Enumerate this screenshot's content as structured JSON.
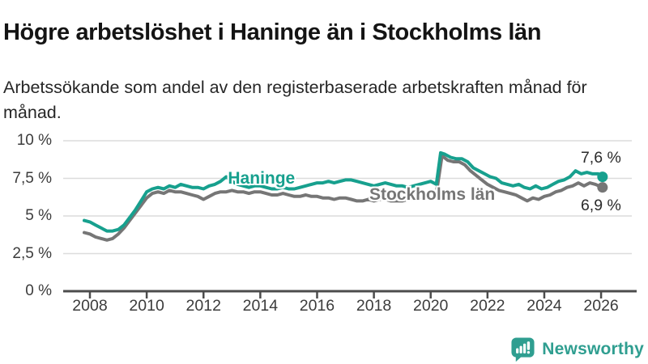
{
  "header": {
    "title": "Högre arbetslöshet i Haninge än i Stockholms län",
    "subtitle": "Arbetssökande som andel av den registerbaserade arbetskraften månad för månad."
  },
  "colors": {
    "haninge": "#17a08e",
    "stockholm": "#767676",
    "grid": "#dcdcdc",
    "axis": "#4c4c4c",
    "tick_text": "#3c3c3c",
    "title_text": "#141414",
    "logo_teal": "#2f9e90"
  },
  "footer": {
    "brand": "Newsworthy"
  },
  "chart_data": {
    "type": "line",
    "title": "Högre arbetslöshet i Haninge än i Stockholms län",
    "subtitle": "Arbetssökande som andel av den registerbaserade arbetskraften månad för månad.",
    "unit": "%",
    "grid": true,
    "x_axis": {
      "range": [
        2007.7,
        2026.3
      ],
      "ticks": [
        {
          "value": 2008,
          "label": "2008"
        },
        {
          "value": 2010,
          "label": "2010"
        },
        {
          "value": 2012,
          "label": "2012"
        },
        {
          "value": 2014,
          "label": "2014"
        },
        {
          "value": 2016,
          "label": "2016"
        },
        {
          "value": 2018,
          "label": "2018"
        },
        {
          "value": 2020,
          "label": "2020"
        },
        {
          "value": 2022,
          "label": "2022"
        },
        {
          "value": 2024,
          "label": "2024"
        },
        {
          "value": 2026,
          "label": "2026"
        }
      ]
    },
    "y_axis": {
      "range": [
        0,
        10
      ],
      "ticks": [
        {
          "value": 0,
          "label": "0 %"
        },
        {
          "value": 2.5,
          "label": "2,5 %"
        },
        {
          "value": 5,
          "label": "5 %"
        },
        {
          "value": 7.5,
          "label": "7,5 %"
        },
        {
          "value": 10,
          "label": "10 %"
        }
      ]
    },
    "series": [
      {
        "name": "Stockholms län",
        "color_key": "stockholm",
        "end_label": "6,9 %",
        "label_at": [
          2017.84,
          6.42
        ],
        "points": [
          [
            2007.8,
            3.9
          ],
          [
            2008.0,
            3.8
          ],
          [
            2008.2,
            3.6
          ],
          [
            2008.4,
            3.5
          ],
          [
            2008.6,
            3.4
          ],
          [
            2008.8,
            3.5
          ],
          [
            2009.0,
            3.8
          ],
          [
            2009.2,
            4.2
          ],
          [
            2009.4,
            4.7
          ],
          [
            2009.6,
            5.2
          ],
          [
            2009.8,
            5.7
          ],
          [
            2010.0,
            6.2
          ],
          [
            2010.2,
            6.5
          ],
          [
            2010.4,
            6.6
          ],
          [
            2010.6,
            6.5
          ],
          [
            2010.8,
            6.7
          ],
          [
            2011.0,
            6.6
          ],
          [
            2011.2,
            6.6
          ],
          [
            2011.4,
            6.5
          ],
          [
            2011.6,
            6.4
          ],
          [
            2011.8,
            6.3
          ],
          [
            2012.0,
            6.1
          ],
          [
            2012.2,
            6.3
          ],
          [
            2012.4,
            6.5
          ],
          [
            2012.6,
            6.6
          ],
          [
            2012.8,
            6.6
          ],
          [
            2013.0,
            6.7
          ],
          [
            2013.2,
            6.6
          ],
          [
            2013.4,
            6.6
          ],
          [
            2013.6,
            6.5
          ],
          [
            2013.8,
            6.6
          ],
          [
            2014.0,
            6.6
          ],
          [
            2014.2,
            6.5
          ],
          [
            2014.4,
            6.4
          ],
          [
            2014.6,
            6.4
          ],
          [
            2014.8,
            6.5
          ],
          [
            2015.0,
            6.4
          ],
          [
            2015.2,
            6.3
          ],
          [
            2015.4,
            6.3
          ],
          [
            2015.6,
            6.4
          ],
          [
            2015.8,
            6.3
          ],
          [
            2016.0,
            6.3
          ],
          [
            2016.2,
            6.2
          ],
          [
            2016.4,
            6.2
          ],
          [
            2016.6,
            6.1
          ],
          [
            2016.8,
            6.2
          ],
          [
            2017.0,
            6.2
          ],
          [
            2017.2,
            6.1
          ],
          [
            2017.4,
            6.0
          ],
          [
            2017.6,
            6.0
          ],
          [
            2017.8,
            6.1
          ],
          [
            2018.0,
            6.0
          ],
          [
            2018.2,
            6.1
          ],
          [
            2018.4,
            6.1
          ],
          [
            2018.6,
            6.0
          ],
          [
            2018.8,
            6.0
          ],
          [
            2019.0,
            6.0
          ],
          [
            2019.2,
            6.1
          ],
          [
            2019.4,
            6.1
          ],
          [
            2019.6,
            6.2
          ],
          [
            2019.8,
            6.3
          ],
          [
            2020.0,
            6.6
          ],
          [
            2020.2,
            6.5
          ],
          [
            2020.4,
            9.0
          ],
          [
            2020.6,
            8.7
          ],
          [
            2020.8,
            8.6
          ],
          [
            2021.0,
            8.6
          ],
          [
            2021.2,
            8.4
          ],
          [
            2021.4,
            8.0
          ],
          [
            2021.6,
            7.7
          ],
          [
            2021.8,
            7.4
          ],
          [
            2022.0,
            7.1
          ],
          [
            2022.2,
            6.9
          ],
          [
            2022.4,
            6.7
          ],
          [
            2022.6,
            6.6
          ],
          [
            2022.8,
            6.5
          ],
          [
            2023.0,
            6.4
          ],
          [
            2023.2,
            6.2
          ],
          [
            2023.4,
            6.0
          ],
          [
            2023.6,
            6.2
          ],
          [
            2023.8,
            6.1
          ],
          [
            2024.0,
            6.3
          ],
          [
            2024.2,
            6.4
          ],
          [
            2024.4,
            6.6
          ],
          [
            2024.6,
            6.7
          ],
          [
            2024.8,
            6.9
          ],
          [
            2025.0,
            7.0
          ],
          [
            2025.2,
            7.2
          ],
          [
            2025.4,
            7.0
          ],
          [
            2025.6,
            7.2
          ],
          [
            2025.8,
            7.1
          ],
          [
            2026.05,
            6.9
          ]
        ]
      },
      {
        "name": "Haninge",
        "color_key": "haninge",
        "end_label": "7,6 %",
        "label_at": [
          2012.86,
          7.45
        ],
        "points": [
          [
            2007.8,
            4.7
          ],
          [
            2008.0,
            4.6
          ],
          [
            2008.2,
            4.4
          ],
          [
            2008.4,
            4.2
          ],
          [
            2008.6,
            4.0
          ],
          [
            2008.8,
            4.0
          ],
          [
            2009.0,
            4.1
          ],
          [
            2009.2,
            4.4
          ],
          [
            2009.4,
            4.9
          ],
          [
            2009.6,
            5.4
          ],
          [
            2009.8,
            6.0
          ],
          [
            2010.0,
            6.6
          ],
          [
            2010.2,
            6.8
          ],
          [
            2010.4,
            6.9
          ],
          [
            2010.6,
            6.8
          ],
          [
            2010.8,
            7.0
          ],
          [
            2011.0,
            6.9
          ],
          [
            2011.2,
            7.1
          ],
          [
            2011.4,
            7.0
          ],
          [
            2011.6,
            6.9
          ],
          [
            2011.8,
            6.9
          ],
          [
            2012.0,
            6.8
          ],
          [
            2012.2,
            7.0
          ],
          [
            2012.4,
            7.1
          ],
          [
            2012.6,
            7.3
          ],
          [
            2012.8,
            7.6
          ],
          [
            2013.0,
            7.3
          ],
          [
            2013.2,
            7.1
          ],
          [
            2013.4,
            7.0
          ],
          [
            2013.6,
            6.9
          ],
          [
            2013.8,
            7.0
          ],
          [
            2014.0,
            7.0
          ],
          [
            2014.2,
            6.9
          ],
          [
            2014.4,
            6.8
          ],
          [
            2014.6,
            6.8
          ],
          [
            2014.8,
            6.9
          ],
          [
            2015.0,
            6.8
          ],
          [
            2015.2,
            6.8
          ],
          [
            2015.4,
            6.9
          ],
          [
            2015.6,
            7.0
          ],
          [
            2015.8,
            7.1
          ],
          [
            2016.0,
            7.2
          ],
          [
            2016.2,
            7.2
          ],
          [
            2016.4,
            7.3
          ],
          [
            2016.6,
            7.2
          ],
          [
            2016.8,
            7.3
          ],
          [
            2017.0,
            7.4
          ],
          [
            2017.2,
            7.4
          ],
          [
            2017.4,
            7.3
          ],
          [
            2017.6,
            7.2
          ],
          [
            2017.8,
            7.1
          ],
          [
            2018.0,
            7.0
          ],
          [
            2018.2,
            7.1
          ],
          [
            2018.4,
            7.2
          ],
          [
            2018.6,
            7.1
          ],
          [
            2018.8,
            7.0
          ],
          [
            2019.0,
            7.0
          ],
          [
            2019.2,
            6.9
          ],
          [
            2019.4,
            7.0
          ],
          [
            2019.6,
            7.1
          ],
          [
            2019.8,
            7.2
          ],
          [
            2020.0,
            7.3
          ],
          [
            2020.2,
            7.1
          ],
          [
            2020.35,
            9.2
          ],
          [
            2020.5,
            9.1
          ],
          [
            2020.7,
            8.9
          ],
          [
            2020.9,
            8.8
          ],
          [
            2021.1,
            8.8
          ],
          [
            2021.3,
            8.6
          ],
          [
            2021.5,
            8.2
          ],
          [
            2021.7,
            8.0
          ],
          [
            2021.9,
            7.8
          ],
          [
            2022.1,
            7.6
          ],
          [
            2022.3,
            7.5
          ],
          [
            2022.5,
            7.2
          ],
          [
            2022.7,
            7.1
          ],
          [
            2022.9,
            7.0
          ],
          [
            2023.1,
            7.1
          ],
          [
            2023.3,
            6.9
          ],
          [
            2023.5,
            6.8
          ],
          [
            2023.7,
            7.0
          ],
          [
            2023.9,
            6.8
          ],
          [
            2024.1,
            6.9
          ],
          [
            2024.3,
            7.1
          ],
          [
            2024.5,
            7.3
          ],
          [
            2024.7,
            7.4
          ],
          [
            2024.9,
            7.6
          ],
          [
            2025.1,
            8.0
          ],
          [
            2025.3,
            7.8
          ],
          [
            2025.5,
            7.9
          ],
          [
            2025.7,
            7.8
          ],
          [
            2025.9,
            7.8
          ],
          [
            2026.05,
            7.6
          ]
        ]
      }
    ]
  }
}
